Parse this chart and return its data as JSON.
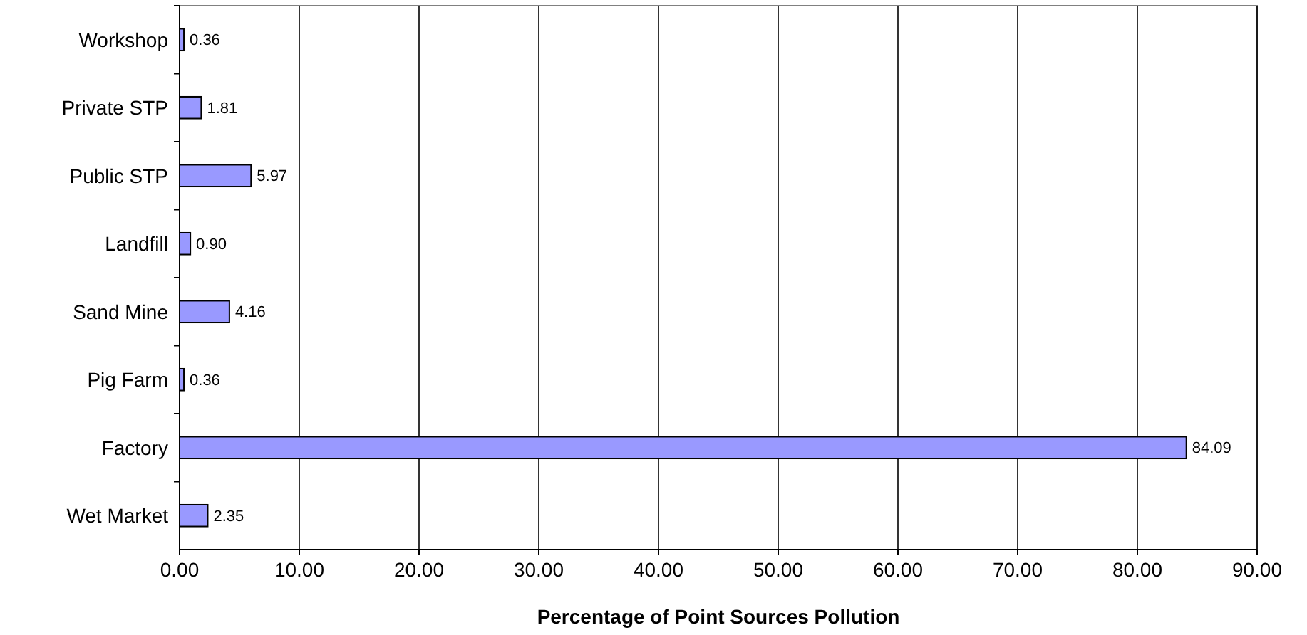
{
  "chart_data": {
    "type": "bar",
    "orientation": "horizontal",
    "xlabel": "Percentage of Point Sources Pollution",
    "categories": [
      "Workshop",
      "Private STP",
      "Public STP",
      "Landfill",
      "Sand Mine",
      "Pig Farm",
      "Factory",
      "Wet Market"
    ],
    "values": [
      0.36,
      1.81,
      5.97,
      0.9,
      4.16,
      0.36,
      84.09,
      2.35
    ],
    "value_labels": [
      "0.36",
      "1.81",
      "5.97",
      "0.90",
      "4.16",
      "0.36",
      "84.09",
      "2.35"
    ],
    "color": "#9999ff",
    "xlim": [
      0,
      90
    ],
    "xticks": [
      {
        "value": 0,
        "label": "0.00"
      },
      {
        "value": 10,
        "label": "10.00"
      },
      {
        "value": 20,
        "label": "20.00"
      },
      {
        "value": 30,
        "label": "30.00"
      },
      {
        "value": 40,
        "label": "40.00"
      },
      {
        "value": 50,
        "label": "50.00"
      },
      {
        "value": 60,
        "label": "60.00"
      },
      {
        "value": 70,
        "label": "70.00"
      },
      {
        "value": 80,
        "label": "80.00"
      },
      {
        "value": 90,
        "label": "90.00"
      }
    ],
    "grid": "x"
  }
}
